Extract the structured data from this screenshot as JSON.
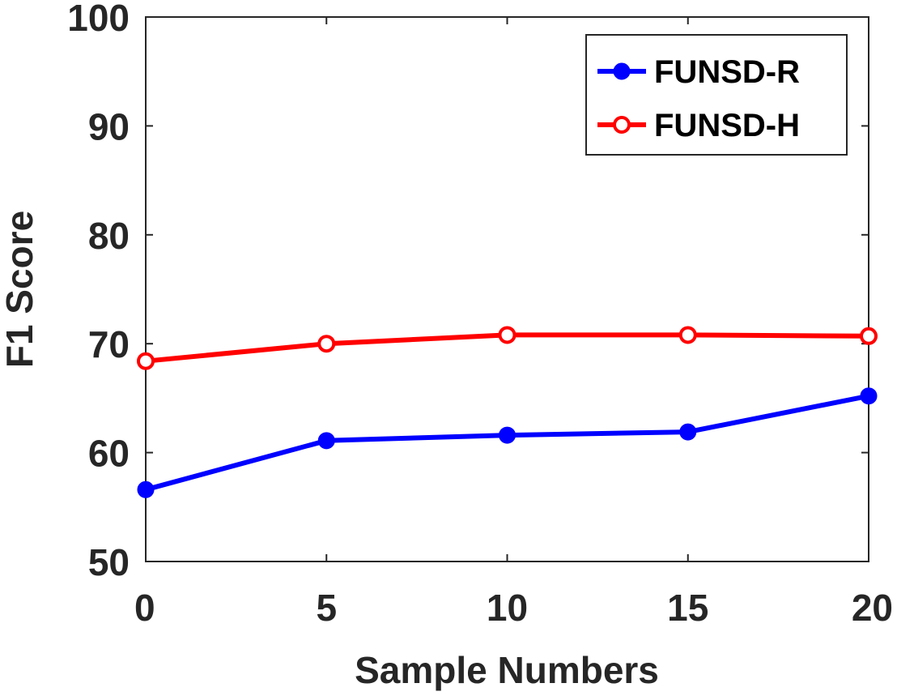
{
  "chart_data": {
    "type": "line",
    "xlabel": "Sample Numbers",
    "ylabel": "F1 Score",
    "xlim": [
      0,
      20
    ],
    "ylim": [
      50,
      100
    ],
    "xticks": [
      0,
      5,
      10,
      15,
      20
    ],
    "yticks": [
      50,
      60,
      70,
      80,
      90,
      100
    ],
    "grid": false,
    "legend_position": "top-right",
    "x": [
      0,
      5,
      10,
      15,
      20
    ],
    "series": [
      {
        "name": "FUNSD-R",
        "values": [
          56.6,
          61.1,
          61.6,
          61.9,
          65.2
        ],
        "color": "#0000ff",
        "marker": "filled-circle"
      },
      {
        "name": "FUNSD-H",
        "values": [
          68.4,
          70.0,
          70.8,
          70.8,
          70.7
        ],
        "color": "#ff0000",
        "marker": "open-circle"
      }
    ]
  }
}
